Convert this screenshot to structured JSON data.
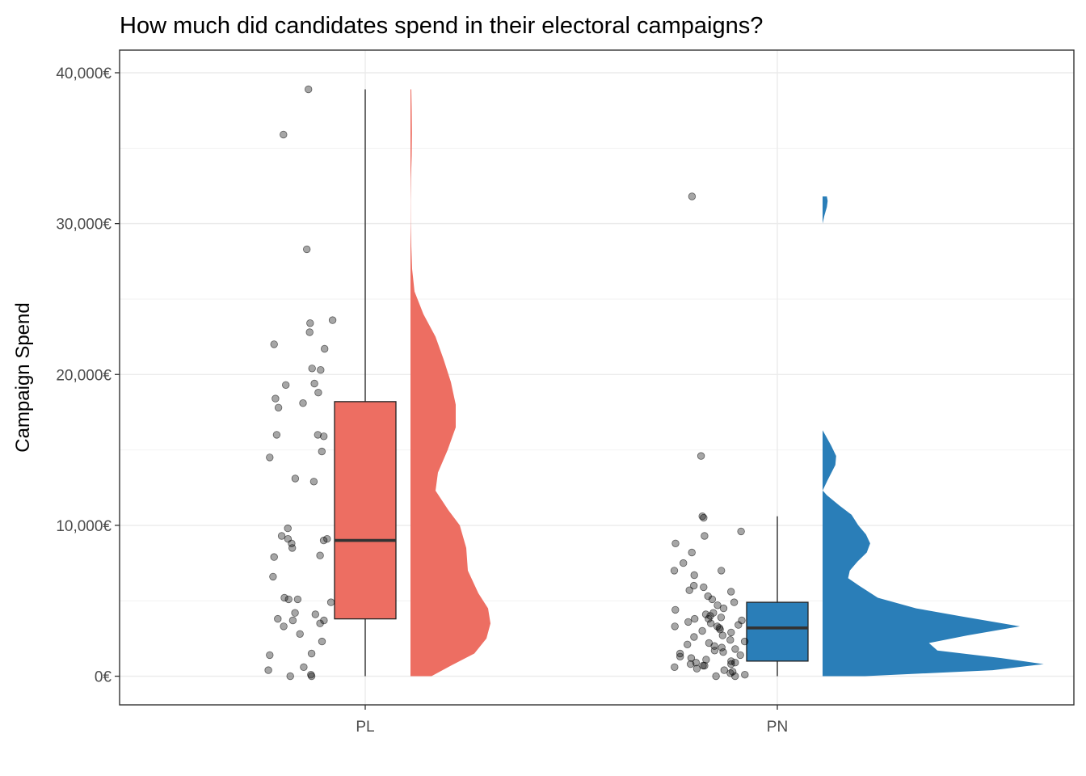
{
  "chart_data": {
    "type": "raincloud",
    "title": "How much did candidates spend in their electoral campaigns?",
    "xlabel": "",
    "ylabel": "Campaign Spend",
    "ylim": [
      -1900,
      41500
    ],
    "y_ticks": [
      {
        "value": 0,
        "label": "0€"
      },
      {
        "value": 10000,
        "label": "10,000€"
      },
      {
        "value": 20000,
        "label": "20,000€"
      },
      {
        "value": 30000,
        "label": "30,000€"
      },
      {
        "value": 40000,
        "label": "40,000€"
      }
    ],
    "y_minor": [
      5000,
      15000,
      25000,
      35000
    ],
    "categories": [
      "PL",
      "PN"
    ],
    "grid": true,
    "legend": "none",
    "colors": {
      "PL": "#ED6E62",
      "PN": "#2A7EB8",
      "points": "#000000"
    },
    "series": [
      {
        "name": "PL",
        "box": {
          "min": 0,
          "q1": 3800,
          "median": 9000,
          "q3": 18200,
          "max": 38900
        },
        "density": [
          [
            0,
            2600
          ],
          [
            700,
            5000
          ],
          [
            1500,
            7900
          ],
          [
            2500,
            9400
          ],
          [
            3500,
            9900
          ],
          [
            4500,
            9600
          ],
          [
            5500,
            8400
          ],
          [
            7000,
            7100
          ],
          [
            8500,
            6900
          ],
          [
            10000,
            6100
          ],
          [
            11000,
            4700
          ],
          [
            12300,
            3100
          ],
          [
            13500,
            3400
          ],
          [
            15000,
            4600
          ],
          [
            16500,
            5600
          ],
          [
            18000,
            5600
          ],
          [
            19500,
            5000
          ],
          [
            21000,
            4100
          ],
          [
            22500,
            3100
          ],
          [
            24000,
            1600
          ],
          [
            25500,
            500
          ],
          [
            27000,
            200
          ],
          [
            28500,
            100
          ],
          [
            30000,
            30
          ],
          [
            31500,
            20
          ],
          [
            33000,
            60
          ],
          [
            34500,
            150
          ],
          [
            36000,
            180
          ],
          [
            37500,
            150
          ],
          [
            38900,
            100
          ]
        ],
        "points": [
          38900,
          35900,
          28300,
          23600,
          23400,
          22800,
          22000,
          21700,
          20400,
          20300,
          19400,
          19300,
          18800,
          18400,
          18100,
          17800,
          16000,
          16000,
          15900,
          14900,
          14500,
          13100,
          12900,
          9800,
          9300,
          9100,
          9100,
          9000,
          8800,
          8500,
          8000,
          7900,
          6600,
          5200,
          5100,
          5100,
          4900,
          4200,
          4100,
          3800,
          3700,
          3700,
          3500,
          3300,
          2800,
          2300,
          1500,
          1400,
          600,
          400,
          100,
          0,
          0
        ]
      },
      {
        "name": "PN",
        "box": {
          "min": 0,
          "q1": 1000,
          "median": 3200,
          "q3": 4900,
          "max": 10600
        },
        "density": [
          [
            0,
            5000
          ],
          [
            400,
            20000
          ],
          [
            800,
            26000
          ],
          [
            1200,
            21000
          ],
          [
            1700,
            13500
          ],
          [
            2200,
            12500
          ],
          [
            2700,
            17000
          ],
          [
            3300,
            23200
          ],
          [
            3900,
            17000
          ],
          [
            4500,
            11000
          ],
          [
            5200,
            6500
          ],
          [
            6000,
            4300
          ],
          [
            6500,
            3000
          ],
          [
            7000,
            3200
          ],
          [
            7600,
            4100
          ],
          [
            8200,
            5200
          ],
          [
            8800,
            5600
          ],
          [
            9400,
            5100
          ],
          [
            10000,
            4200
          ],
          [
            10700,
            3400
          ],
          [
            11300,
            2000
          ],
          [
            12000,
            500
          ],
          [
            12250,
            100
          ],
          [
            12300,
            0
          ],
          [
            13000,
            600
          ],
          [
            14000,
            1500
          ],
          [
            14600,
            1600
          ],
          [
            15300,
            1000
          ],
          [
            16000,
            300
          ],
          [
            16300,
            0
          ],
          [
            30000,
            0
          ],
          [
            30500,
            200
          ],
          [
            31100,
            500
          ],
          [
            31500,
            600
          ],
          [
            31800,
            500
          ]
        ],
        "points": [
          31800,
          14600,
          10600,
          10500,
          9600,
          9300,
          8800,
          8200,
          7500,
          7000,
          7000,
          6700,
          6000,
          5900,
          5700,
          5600,
          5300,
          5100,
          4900,
          4700,
          4500,
          4400,
          4200,
          4100,
          4000,
          3900,
          3800,
          3800,
          3700,
          3600,
          3500,
          3400,
          3300,
          3300,
          3200,
          3100,
          3000,
          2900,
          2700,
          2600,
          2400,
          2300,
          2200,
          2100,
          2000,
          1900,
          1800,
          1700,
          1600,
          1500,
          1400,
          1300,
          1200,
          1100,
          1000,
          900,
          900,
          800,
          800,
          700,
          700,
          600,
          500,
          400,
          300,
          200,
          100,
          0,
          0
        ]
      }
    ]
  }
}
